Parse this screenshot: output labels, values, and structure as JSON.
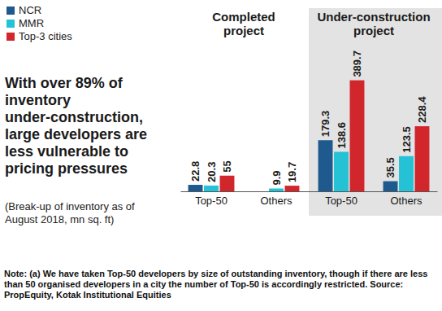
{
  "chart_data": {
    "type": "bar",
    "title": "With over 89% of inventory under-construction, large developers are less vulnerable to pricing pressures",
    "subtitle": "(Break-up of inventory as of August 2018, mn sq. ft)",
    "group_labels": [
      "Completed project",
      "Under-construction project"
    ],
    "categories": [
      "Top-50",
      "Others",
      "Top-50",
      "Others"
    ],
    "series": [
      {
        "name": "NCR",
        "color": "#1f5a8e",
        "values": [
          22.8,
          null,
          179.3,
          35.5
        ]
      },
      {
        "name": "MMR",
        "color": "#25c2d6",
        "values": [
          20.3,
          9.9,
          138.6,
          123.5
        ]
      },
      {
        "name": "Top-3 cities",
        "color": "#d1262c",
        "values": [
          55,
          19.7,
          389.7,
          228.4
        ]
      }
    ],
    "ylim": [
      0,
      400
    ],
    "data_labels": true,
    "tick_labels": "x",
    "legend": "top-left",
    "note": "Note: (a) We have taken Top-50 developers by size of outstanding inventory, though if there are less than 50 organised developers in a city the number of Top-50 is accordingly restricted.  Source: PropEquity, Kotak Institutional Equities"
  }
}
